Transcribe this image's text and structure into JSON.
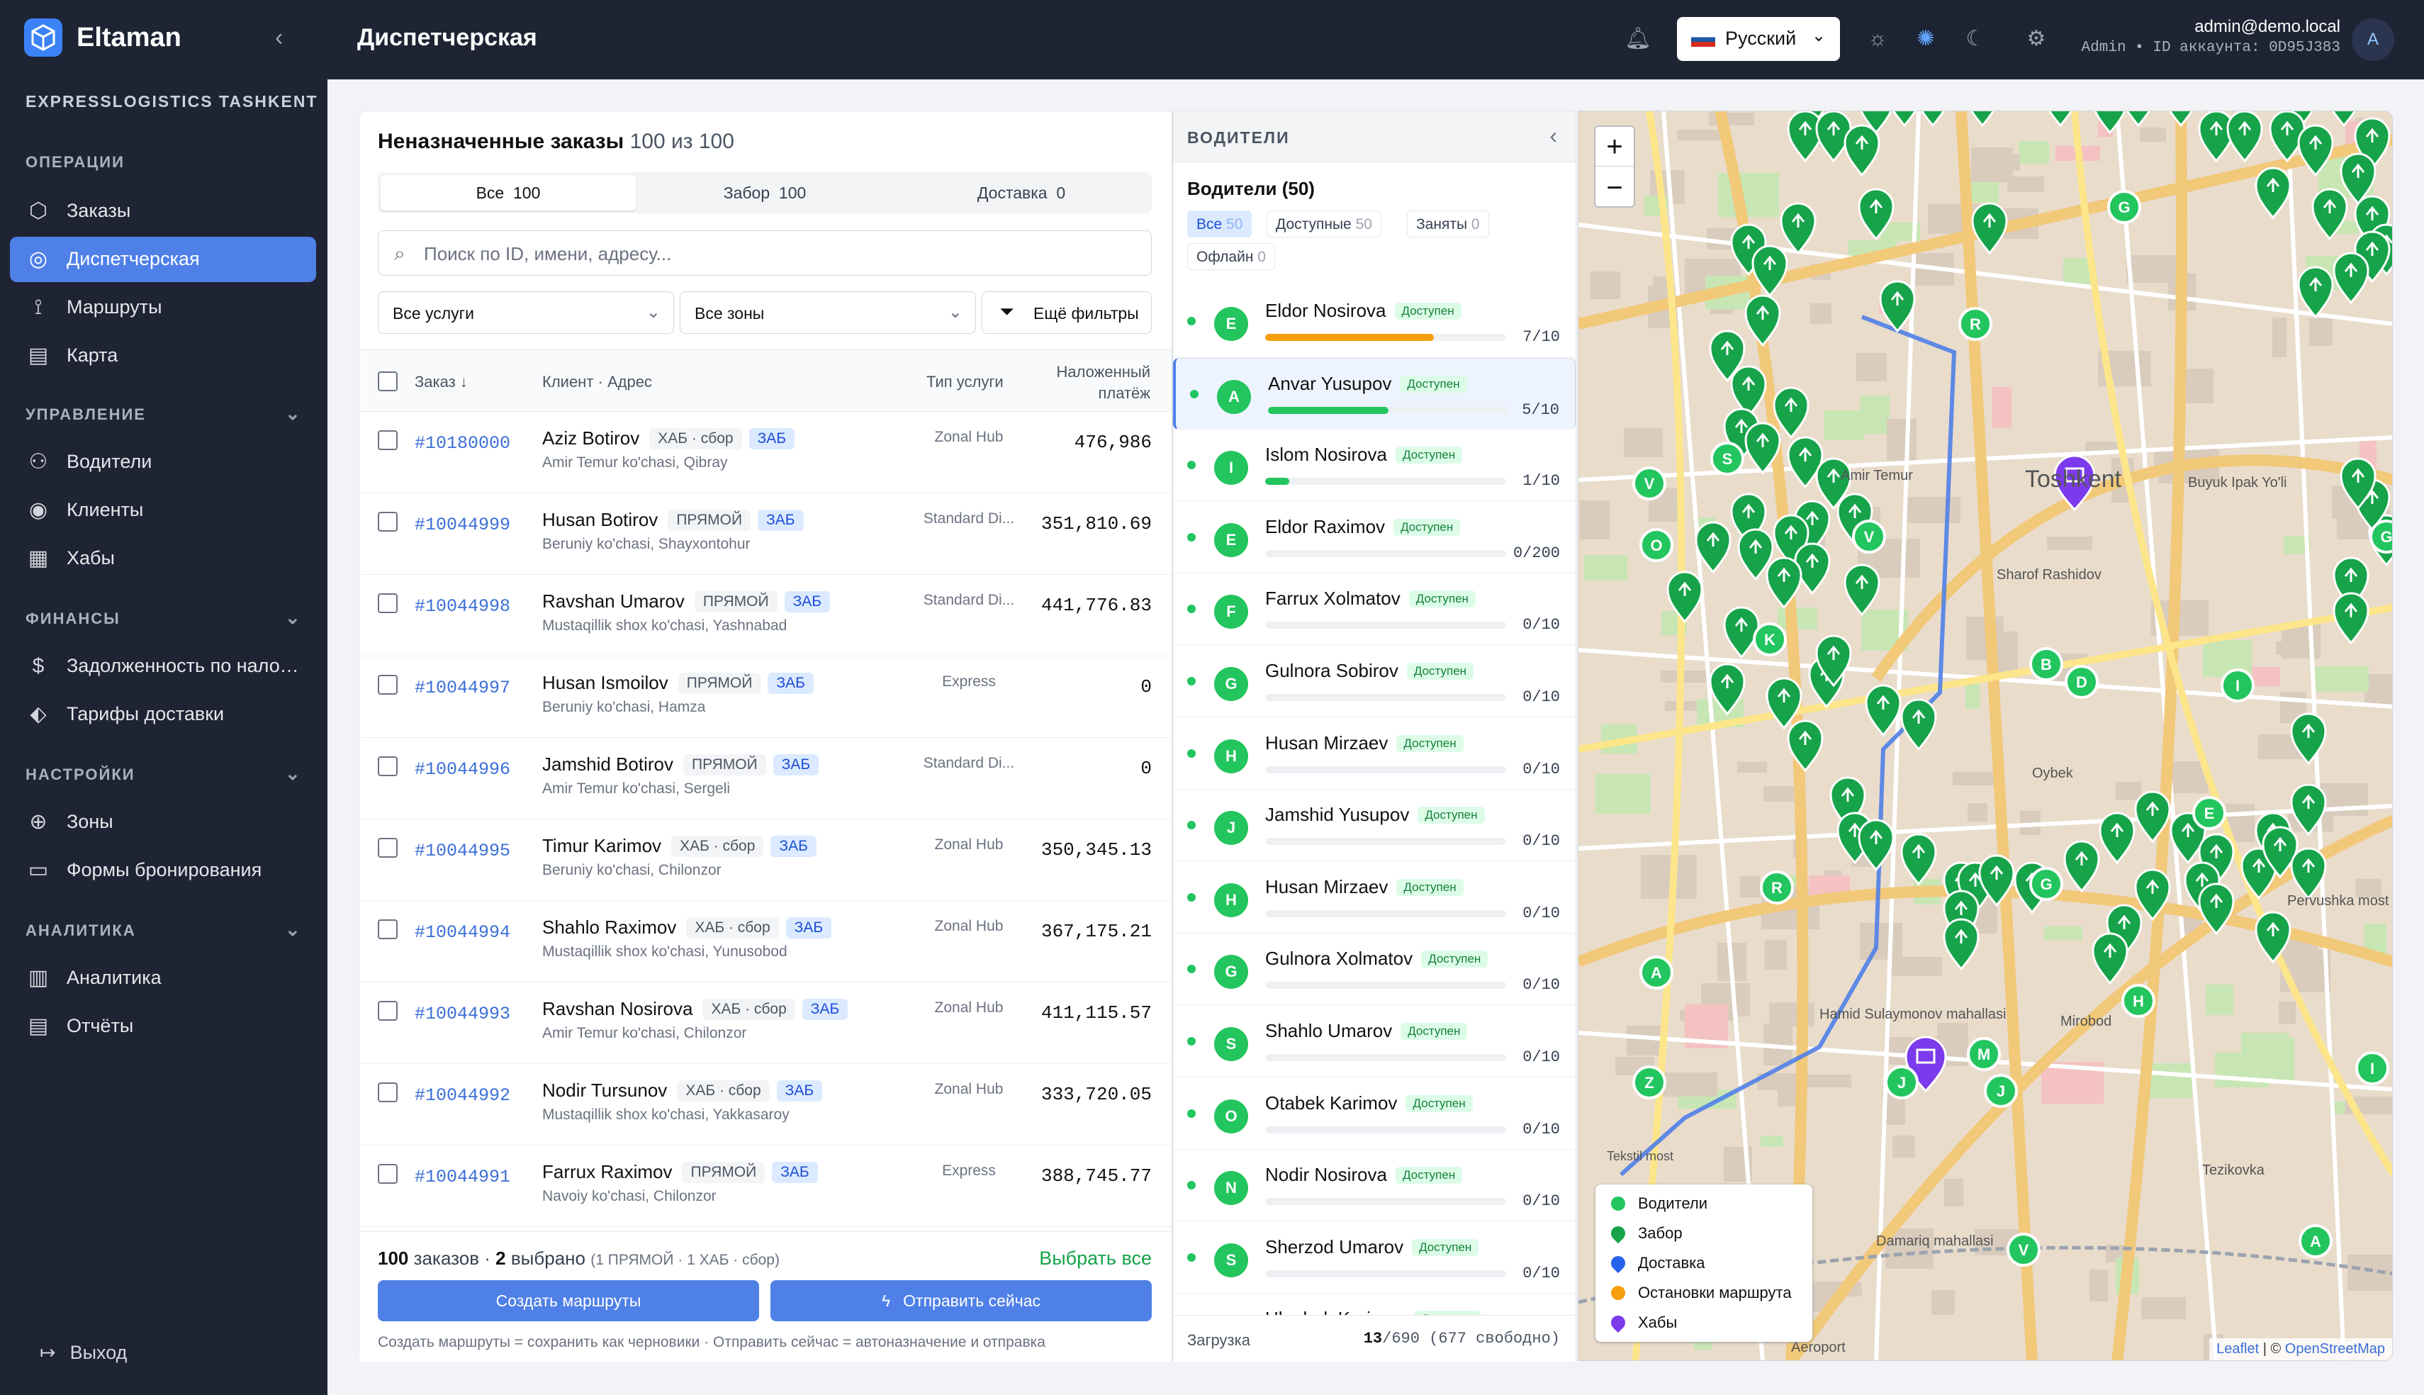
{
  "app": {
    "name": "Eltaman",
    "org": "EXPRESSLOGISTICS TASHKENT"
  },
  "sidebar": {
    "sections": [
      {
        "title": "ОПЕРАЦИИ",
        "items": [
          "Заказы",
          "Диспетчерская",
          "Маршруты",
          "Карта"
        ]
      },
      {
        "title": "УПРАВЛЕНИЕ",
        "items": [
          "Водители",
          "Клиенты",
          "Хабы"
        ]
      },
      {
        "title": "ФИНАНСЫ",
        "items": [
          "Задолженность по наложенному платежу",
          "Тарифы доставки"
        ]
      },
      {
        "title": "НАСТРОЙКИ",
        "items": [
          "Зоны",
          "Формы бронирования"
        ]
      },
      {
        "title": "АНАЛИТИКА",
        "items": [
          "Аналитика",
          "Отчёты"
        ]
      }
    ],
    "active": "Диспетчерская",
    "logout": "Выход"
  },
  "header": {
    "title": "Диспетчерская",
    "language": "Русский",
    "user_email": "admin@demo.local",
    "user_meta": "Admin • ID аккаунта: 0D95J383",
    "avatar": "A"
  },
  "orders": {
    "title": "Неназначенные заказы",
    "count": "100 из 100",
    "tabs": [
      {
        "label": "Все",
        "count": "100"
      },
      {
        "label": "Забор",
        "count": "100"
      },
      {
        "label": "Доставка",
        "count": "0"
      }
    ],
    "search_placeholder": "Поиск по ID, имени, адресу...",
    "filter_services": "Все услуги",
    "filter_zones": "Все зоны",
    "more_filters": "Ещё фильтры",
    "columns": {
      "order": "Заказ",
      "client": "Клиент · Адрес",
      "service": "Тип услуги",
      "cod": "Наложенный платёж"
    },
    "rows": [
      {
        "id": "#10180000",
        "name": "Aziz Botirov",
        "type": "ХАБ · сбор",
        "zone": "ЗАБ",
        "address": "Amir Temur ko'chasi, Qibray",
        "service": "Zonal Hub",
        "cod": "476,986"
      },
      {
        "id": "#10044999",
        "name": "Husan Botirov",
        "type": "ПРЯМОЙ",
        "zone": "ЗАБ",
        "address": "Beruniy ko'chasi, Shayxontohur",
        "service": "Standard Di...",
        "cod": "351,810.69"
      },
      {
        "id": "#10044998",
        "name": "Ravshan Umarov",
        "type": "ПРЯМОЙ",
        "zone": "ЗАБ",
        "address": "Mustaqillik shox ko'chasi, Yashnabad",
        "service": "Standard Di...",
        "cod": "441,776.83"
      },
      {
        "id": "#10044997",
        "name": "Husan Ismoilov",
        "type": "ПРЯМОЙ",
        "zone": "ЗАБ",
        "address": "Beruniy ko'chasi, Hamza",
        "service": "Express",
        "cod": "0"
      },
      {
        "id": "#10044996",
        "name": "Jamshid Botirov",
        "type": "ПРЯМОЙ",
        "zone": "ЗАБ",
        "address": "Amir Temur ko'chasi, Sergeli",
        "service": "Standard Di...",
        "cod": "0"
      },
      {
        "id": "#10044995",
        "name": "Timur Karimov",
        "type": "ХАБ · сбор",
        "zone": "ЗАБ",
        "address": "Beruniy ko'chasi, Chilonzor",
        "service": "Zonal Hub",
        "cod": "350,345.13"
      },
      {
        "id": "#10044994",
        "name": "Shahlo Raximov",
        "type": "ХАБ · сбор",
        "zone": "ЗАБ",
        "address": "Mustaqillik shox ko'chasi, Yunusobod",
        "service": "Zonal Hub",
        "cod": "367,175.21"
      },
      {
        "id": "#10044993",
        "name": "Ravshan Nosirova",
        "type": "ХАБ · сбор",
        "zone": "ЗАБ",
        "address": "Amir Temur ko'chasi, Chilonzor",
        "service": "Zonal Hub",
        "cod": "411,115.57"
      },
      {
        "id": "#10044992",
        "name": "Nodir Tursunov",
        "type": "ХАБ · сбор",
        "zone": "ЗАБ",
        "address": "Mustaqillik shox ko'chasi, Yakkasaroy",
        "service": "Zonal Hub",
        "cod": "333,720.05"
      },
      {
        "id": "#10044991",
        "name": "Farrux Raximov",
        "type": "ПРЯМОЙ",
        "zone": "ЗАБ",
        "address": "Navoiy ko'chasi, Chilonzor",
        "service": "Express",
        "cod": "388,745.77"
      }
    ],
    "footer_count": "100",
    "footer_count_label": "заказов",
    "footer_selected": "2",
    "footer_selected_label": "выбрано",
    "footer_breakdown": "(1 ПРЯМОЙ · 1 ХАБ · сбор)",
    "select_all": "Выбрать все",
    "create_routes": "Создать маршруты",
    "send_now": "Отправить сейчас",
    "hint": "Создать маршруты = сохранить как черновики · Отправить сейчас = автоназначение и отправка"
  },
  "drivers": {
    "panel_title": "ВОДИТЕЛИ",
    "title": "Водители (50)",
    "filters": [
      {
        "label": "Все",
        "count": "50"
      },
      {
        "label": "Доступные",
        "count": "50"
      },
      {
        "label": "Заняты",
        "count": "0"
      },
      {
        "label": "Офлайн",
        "count": "0"
      }
    ],
    "status_label": "Доступен",
    "list": [
      {
        "initial": "E",
        "name": "Eldor Nosirova",
        "load": "7/10",
        "fill": 0.7,
        "color": "#f59e0b"
      },
      {
        "initial": "A",
        "name": "Anvar Yusupov",
        "load": "5/10",
        "fill": 0.5,
        "color": "#22c55e"
      },
      {
        "initial": "I",
        "name": "Islom Nosirova",
        "load": "1/10",
        "fill": 0.1,
        "color": "#22c55e"
      },
      {
        "initial": "E",
        "name": "Eldor Raximov",
        "load": "0/200",
        "fill": 0,
        "color": "#22c55e"
      },
      {
        "initial": "F",
        "name": "Farrux Xolmatov",
        "load": "0/10",
        "fill": 0,
        "color": "#22c55e"
      },
      {
        "initial": "G",
        "name": "Gulnora Sobirov",
        "load": "0/10",
        "fill": 0,
        "color": "#22c55e"
      },
      {
        "initial": "H",
        "name": "Husan Mirzaev",
        "load": "0/10",
        "fill": 0,
        "color": "#22c55e"
      },
      {
        "initial": "J",
        "name": "Jamshid Yusupov",
        "load": "0/10",
        "fill": 0,
        "color": "#22c55e"
      },
      {
        "initial": "H",
        "name": "Husan Mirzaev",
        "load": "0/10",
        "fill": 0,
        "color": "#22c55e"
      },
      {
        "initial": "G",
        "name": "Gulnora Xolmatov",
        "load": "0/10",
        "fill": 0,
        "color": "#22c55e"
      },
      {
        "initial": "S",
        "name": "Shahlo Umarov",
        "load": "0/10",
        "fill": 0,
        "color": "#22c55e"
      },
      {
        "initial": "O",
        "name": "Otabek Karimov",
        "load": "0/10",
        "fill": 0,
        "color": "#22c55e"
      },
      {
        "initial": "N",
        "name": "Nodir Nosirova",
        "load": "0/10",
        "fill": 0,
        "color": "#22c55e"
      },
      {
        "initial": "S",
        "name": "Sherzod Umarov",
        "load": "0/10",
        "fill": 0,
        "color": "#22c55e"
      },
      {
        "initial": "U",
        "name": "Ulugbek Karimov",
        "load": "",
        "fill": 0,
        "color": "#22c55e"
      }
    ],
    "footer_label": "Загрузка",
    "footer_used": "13",
    "footer_total": "/690",
    "footer_free": "(677 свободно)"
  },
  "map": {
    "legend": [
      {
        "label": "Водители",
        "color": "#22c55e"
      },
      {
        "label": "Забор",
        "color": "#16a34a"
      },
      {
        "label": "Доставка",
        "color": "#2563eb"
      },
      {
        "label": "Остановки маршрута",
        "color": "#f59e0b"
      },
      {
        "label": "Хабы",
        "color": "#7c3aed"
      }
    ],
    "labels": [
      "Toshkent",
      "Amir Temur",
      "Sharof Rashidov",
      "Oybek",
      "Mirobod",
      "Pervushka most",
      "Hamid Sulaymonov mahallasi",
      "Aeroport",
      "Tekstil most",
      "Damariq mahallasi",
      "Tezikovka",
      "Buyuk Ipak Yo'li"
    ],
    "attribution_leaflet": "Leaflet",
    "attribution_sep": "| ©",
    "attribution_osm": "OpenStreetMap",
    "accent": "#4f80e8"
  }
}
